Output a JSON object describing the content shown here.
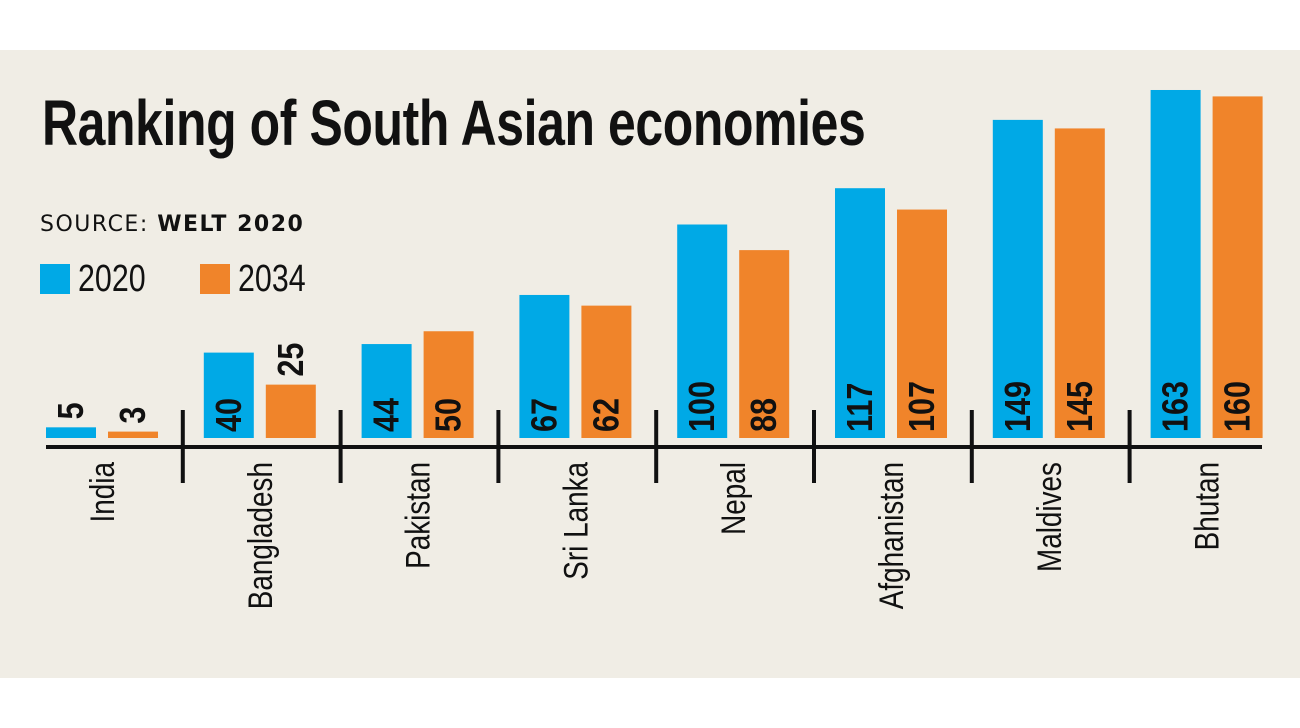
{
  "chart_data": {
    "type": "bar",
    "title": "Ranking of South Asian economies",
    "source_label": "SOURCE:",
    "source_value": "WELT 2020",
    "categories": [
      "India",
      "Bangladesh",
      "Pakistan",
      "Sri Lanka",
      "Nepal",
      "Afghanistan",
      "Maldives",
      "Bhutan"
    ],
    "series": [
      {
        "name": "2020",
        "color": "#00a9e6",
        "values": [
          5,
          40,
          44,
          67,
          100,
          117,
          149,
          163
        ]
      },
      {
        "name": "2034",
        "color": "#f0842a",
        "values": [
          3,
          25,
          50,
          62,
          88,
          107,
          145,
          160
        ]
      }
    ],
    "legend_position": "top-left",
    "grid": false,
    "ylim": [
      0,
      165
    ]
  }
}
